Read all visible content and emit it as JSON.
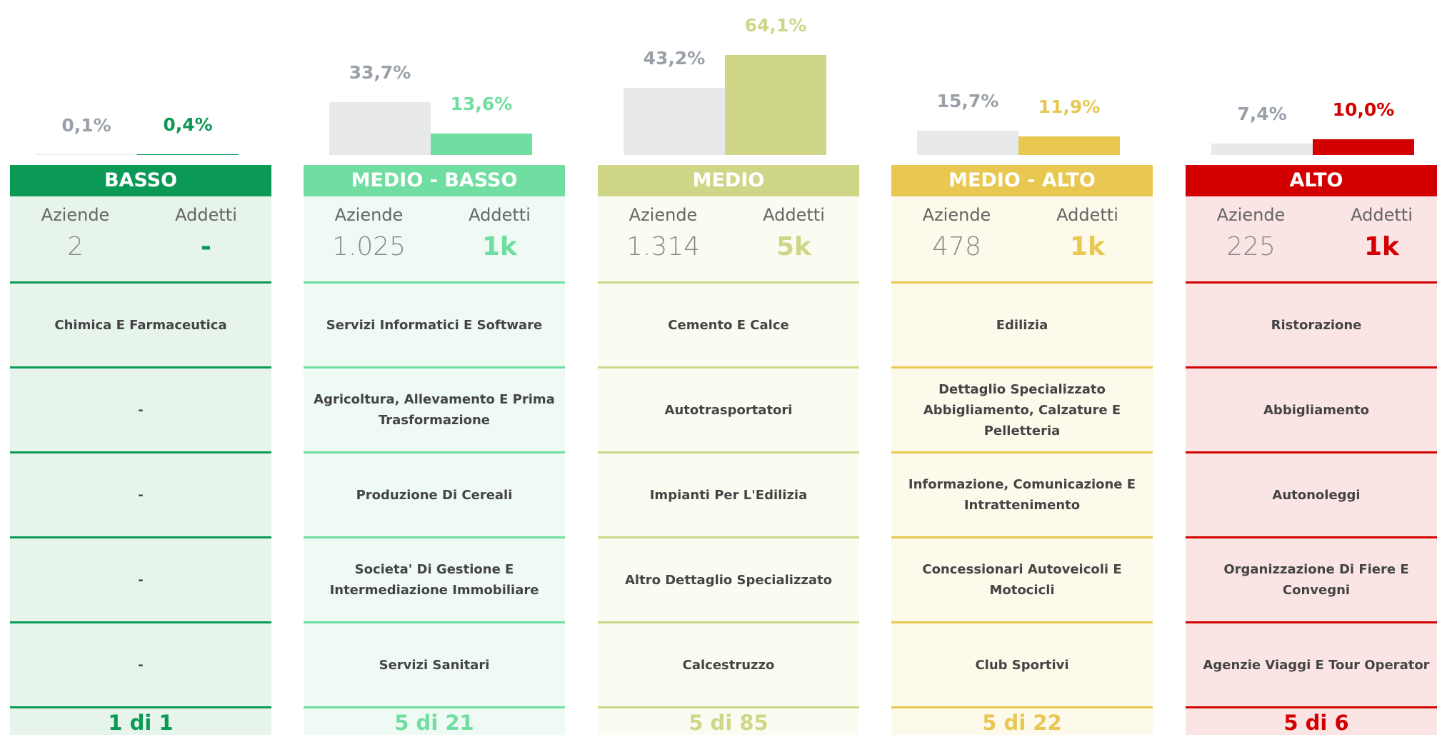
{
  "labels": {
    "aziende": "Aziende",
    "addetti": "Addetti"
  },
  "columns": [
    {
      "title": "BASSO",
      "color": "#0a9a55",
      "background": "#e7f4ec",
      "bars": {
        "values": [
          0.1,
          0.4
        ],
        "value_labels": [
          "0,1%",
          "0,4%"
        ]
      },
      "aziende": "2",
      "addetti": "-",
      "items": [
        "Chimica E Farmaceutica",
        "-",
        "-",
        "-",
        "-"
      ],
      "footer": "1 di 1"
    },
    {
      "title": "MEDIO - BASSO",
      "color": "#6fdea0",
      "background": "#eefaf3",
      "bars": {
        "values": [
          33.7,
          13.6
        ],
        "value_labels": [
          "33,7%",
          "13,6%"
        ]
      },
      "aziende": "1.025",
      "addetti": "1k",
      "items": [
        "Servizi Informatici E Software",
        "Agricoltura, Allevamento E Prima Trasformazione",
        "Produzione Di Cereali",
        "Societa' Di Gestione E Intermediazione Immobiliare",
        "Servizi Sanitari"
      ],
      "footer": "5 di 21"
    },
    {
      "title": "MEDIO",
      "color": "#cfd688",
      "background": "#fbfcf1",
      "bars": {
        "values": [
          43.2,
          64.1
        ],
        "value_labels": [
          "43,2%",
          "64,1%"
        ]
      },
      "aziende": "1.314",
      "addetti": "5k",
      "items": [
        "Cemento E Calce",
        "Autotrasportatori",
        "Impianti Per L'Edilizia",
        "Altro Dettaglio Specializzato",
        "Calcestruzzo"
      ],
      "footer": "5 di 85"
    },
    {
      "title": "MEDIO - ALTO",
      "color": "#e8c850",
      "background": "#fdf9eb",
      "bars": {
        "values": [
          15.7,
          11.9
        ],
        "value_labels": [
          "15,7%",
          "11,9%"
        ]
      },
      "aziende": "478",
      "addetti": "1k",
      "items": [
        "Edilizia",
        "Dettaglio Specializzato Abbigliamento, Calzature E Pelletteria",
        "Informazione, Comunicazione E Intrattenimento",
        "Concessionari Autoveicoli E Motocicli",
        "Club Sportivi"
      ],
      "footer": "5 di 22"
    },
    {
      "title": "ALTO",
      "color": "#d20000",
      "background": "#fbe4e4",
      "bars": {
        "values": [
          7.4,
          10.0
        ],
        "value_labels": [
          "7,4%",
          "10,0%"
        ]
      },
      "aziende": "225",
      "addetti": "1k",
      "items": [
        "Ristorazione",
        "Abbigliamento",
        "Autonoleggi",
        "Organizzazione Di Fiere E Convegni",
        "Agenzie Viaggi E Tour Operator"
      ],
      "footer": "5 di 6"
    }
  ]
}
